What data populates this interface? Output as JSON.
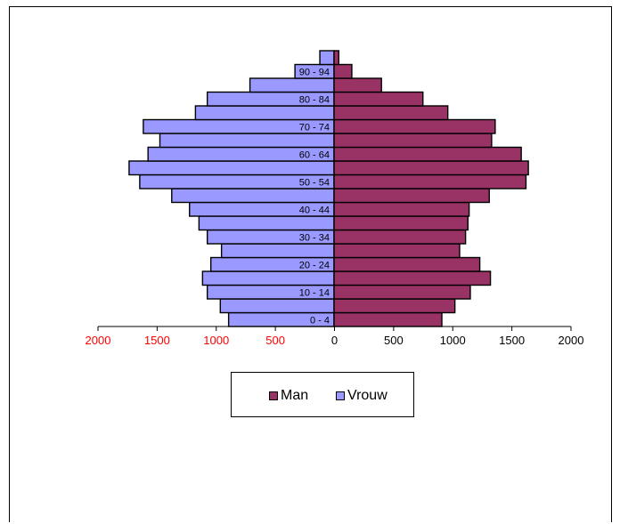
{
  "chart_data": {
    "type": "bar",
    "orientation": "horizontal",
    "layout": "population-pyramid",
    "title": "",
    "xlabel": "",
    "ylabel": "",
    "xlim": [
      -2000,
      2000
    ],
    "x_ticks": [
      "2000",
      "1500",
      "1000",
      "500",
      "0",
      "500",
      "1000",
      "1500",
      "2000"
    ],
    "tick_color_left": "#ff0000",
    "tick_color_right": "#000000",
    "categories": [
      "0 - 4",
      "5 - 9",
      "10 - 14",
      "15 - 19",
      "20 - 24",
      "25 - 29",
      "30 - 34",
      "35 - 39",
      "40 - 44",
      "45 - 49",
      "50 - 54",
      "55 - 59",
      "60 - 64",
      "65 - 69",
      "70 - 74",
      "75 - 79",
      "80 - 84",
      "85 - 89",
      "90 - 94",
      "95+"
    ],
    "category_labels": [
      "0 - 4",
      "",
      "10 - 14",
      "",
      "20 - 24",
      "",
      "30 - 34",
      "",
      "40 - 44",
      "",
      "50 - 54",
      "",
      "60 - 64",
      "",
      "70 - 74",
      "",
      "80 - 84",
      "",
      "90 - 94",
      ""
    ],
    "series": [
      {
        "name": "Man",
        "color": "#993366",
        "values": [
          910,
          1020,
          1150,
          1320,
          1230,
          1060,
          1110,
          1130,
          1140,
          1310,
          1620,
          1640,
          1580,
          1330,
          1360,
          960,
          750,
          400,
          150,
          40
        ]
      },
      {
        "name": "Vrouw",
        "color": "#9999ff",
        "values": [
          890,
          960,
          1070,
          1110,
          1040,
          950,
          1070,
          1140,
          1220,
          1370,
          1640,
          1730,
          1570,
          1470,
          1610,
          1170,
          1070,
          710,
          330,
          120
        ]
      }
    ],
    "legend_position": "bottom",
    "grid": false
  },
  "legend": [
    {
      "label": "Man",
      "color": "#993366"
    },
    {
      "label": "Vrouw",
      "color": "#9999ff"
    }
  ]
}
